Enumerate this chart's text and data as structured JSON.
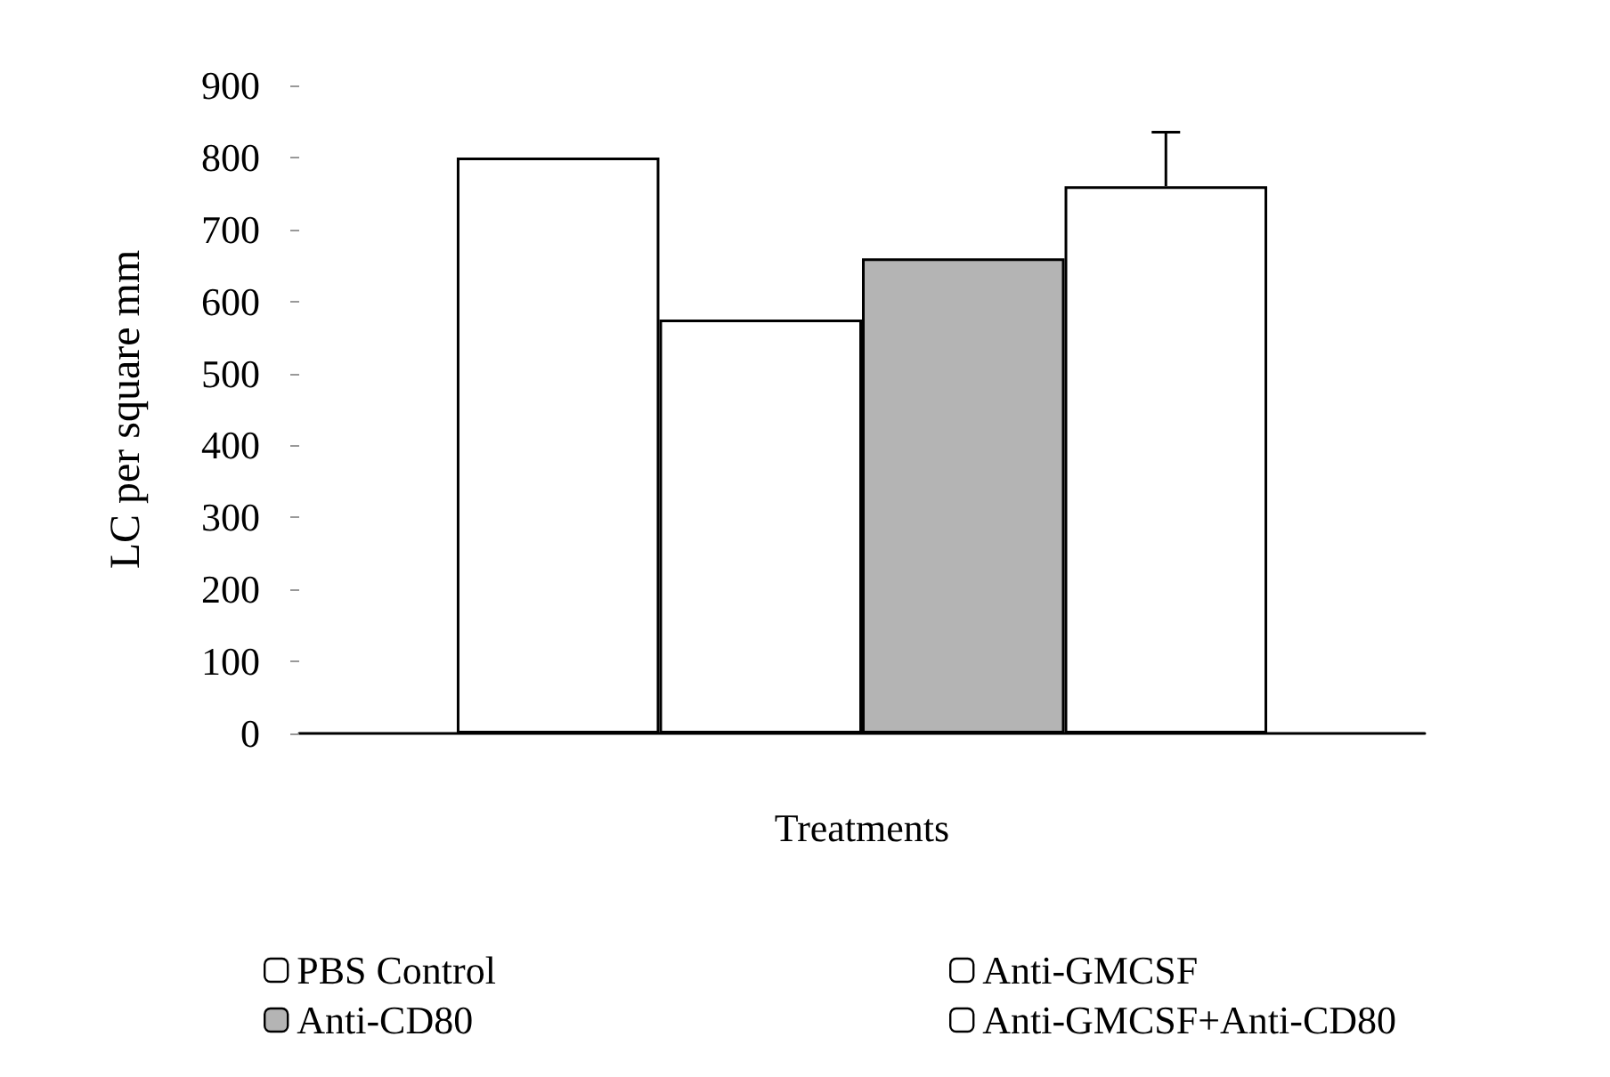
{
  "chart_data": {
    "type": "bar",
    "xlabel": "Treatments",
    "ylabel": "LC per square mm",
    "categories": [
      null
    ],
    "series": [
      {
        "name": "PBS Control",
        "color": "#ffffff",
        "values": [
          800
        ]
      },
      {
        "name": "Anti-GMCSF",
        "color": "#ffffff",
        "values": [
          575
        ]
      },
      {
        "name": "Anti-CD80",
        "color": "#b4b4b4",
        "values": [
          660
        ]
      },
      {
        "name": "Anti-GMCSF+Anti-CD80",
        "color": "#ffffff",
        "values": [
          760
        ],
        "errors": [
          [
            760,
            835
          ]
        ]
      }
    ],
    "ylim": [
      0,
      900
    ],
    "yticks": [
      0,
      100,
      200,
      300,
      400,
      500,
      600,
      700,
      800,
      900
    ],
    "grid": false,
    "legend": "bottom"
  }
}
